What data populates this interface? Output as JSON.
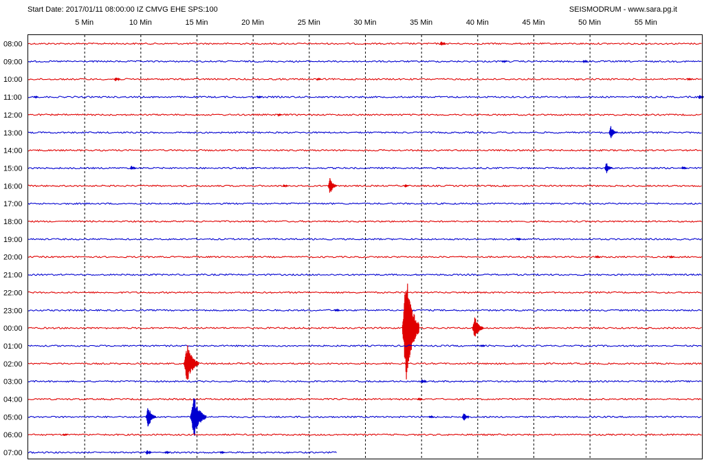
{
  "header": {
    "info": "Start Date: 2017/01/11 08:00:00 IZ CMVG EHE SPS:100",
    "credit": "SEISMODRUM - www.sara.pg.it"
  },
  "colors": {
    "red_trace": "#e00000",
    "blue_trace": "#0000d0",
    "grid": "#000000",
    "background": "#ffffff"
  },
  "chart_data": {
    "type": "line",
    "title": "",
    "xlabel": "",
    "ylabel": "",
    "x_unit": "minutes",
    "xlim": [
      0,
      60
    ],
    "x_ticks": [
      {
        "value": 5,
        "label": "5 Min"
      },
      {
        "value": 10,
        "label": "10 Min"
      },
      {
        "value": 15,
        "label": "15 Min"
      },
      {
        "value": 20,
        "label": "20 Min"
      },
      {
        "value": 25,
        "label": "25 Min"
      },
      {
        "value": 30,
        "label": "30 Min"
      },
      {
        "value": 35,
        "label": "35 Min"
      },
      {
        "value": 40,
        "label": "40 Min"
      },
      {
        "value": 45,
        "label": "45 Min"
      },
      {
        "value": 50,
        "label": "50 Min"
      },
      {
        "value": 55,
        "label": "55 Min"
      }
    ],
    "grid": true,
    "rows": [
      {
        "hour": "08:00",
        "color": "red",
        "end_minute": 60,
        "events": [
          {
            "minute": 36.8,
            "amp": 0.3
          }
        ]
      },
      {
        "hour": "09:00",
        "color": "blue",
        "end_minute": 60,
        "events": [
          {
            "minute": 49.5,
            "amp": 0.2
          },
          {
            "minute": 42.3,
            "amp": 0.15
          }
        ]
      },
      {
        "hour": "10:00",
        "color": "red",
        "end_minute": 60,
        "events": [
          {
            "minute": 7.8,
            "amp": 0.3
          },
          {
            "minute": 25.8,
            "amp": 0.1
          },
          {
            "minute": 58.8,
            "amp": 0.12
          }
        ]
      },
      {
        "hour": "11:00",
        "color": "blue",
        "end_minute": 60,
        "events": [
          {
            "minute": 0.6,
            "amp": 0.12
          },
          {
            "minute": 20.5,
            "amp": 0.12
          },
          {
            "minute": 59.8,
            "amp": 0.3
          }
        ]
      },
      {
        "hour": "12:00",
        "color": "red",
        "end_minute": 60,
        "events": [
          {
            "minute": 22.3,
            "amp": 0.1
          }
        ]
      },
      {
        "hour": "13:00",
        "color": "blue",
        "end_minute": 60,
        "events": [
          {
            "minute": 51.9,
            "amp": 0.9
          }
        ]
      },
      {
        "hour": "14:00",
        "color": "red",
        "end_minute": 60,
        "events": []
      },
      {
        "hour": "15:00",
        "color": "blue",
        "end_minute": 60,
        "events": [
          {
            "minute": 9.2,
            "amp": 0.3
          },
          {
            "minute": 51.5,
            "amp": 0.8
          },
          {
            "minute": 58.3,
            "amp": 0.2
          }
        ]
      },
      {
        "hour": "16:00",
        "color": "red",
        "end_minute": 60,
        "events": [
          {
            "minute": 22.8,
            "amp": 0.2
          },
          {
            "minute": 26.9,
            "amp": 1.1
          },
          {
            "minute": 33.6,
            "amp": 0.1
          }
        ]
      },
      {
        "hour": "17:00",
        "color": "blue",
        "end_minute": 60,
        "events": []
      },
      {
        "hour": "18:00",
        "color": "red",
        "end_minute": 60,
        "events": []
      },
      {
        "hour": "19:00",
        "color": "blue",
        "end_minute": 60,
        "events": [
          {
            "minute": 43.6,
            "amp": 0.15
          }
        ]
      },
      {
        "hour": "20:00",
        "color": "red",
        "end_minute": 60,
        "events": [
          {
            "minute": 50.6,
            "amp": 0.15
          },
          {
            "minute": 57.2,
            "amp": 0.12
          }
        ]
      },
      {
        "hour": "21:00",
        "color": "blue",
        "end_minute": 60,
        "events": []
      },
      {
        "hour": "22:00",
        "color": "red",
        "end_minute": 60,
        "events": []
      },
      {
        "hour": "23:00",
        "color": "blue",
        "end_minute": 60,
        "events": [
          {
            "minute": 27.4,
            "amp": 0.2
          },
          {
            "minute": 33.7,
            "amp": 0.3
          }
        ]
      },
      {
        "hour": "00:00",
        "color": "red",
        "end_minute": 60,
        "events": [
          {
            "minute": 33.7,
            "amp": 8.0
          },
          {
            "minute": 39.8,
            "amp": 1.6
          }
        ]
      },
      {
        "hour": "01:00",
        "color": "blue",
        "end_minute": 60,
        "events": [
          {
            "minute": 40.4,
            "amp": 0.12
          }
        ]
      },
      {
        "hour": "02:00",
        "color": "red",
        "end_minute": 60,
        "events": [
          {
            "minute": 14.2,
            "amp": 2.6
          }
        ]
      },
      {
        "hour": "03:00",
        "color": "blue",
        "end_minute": 60,
        "events": [
          {
            "minute": 35.1,
            "amp": 0.3
          }
        ]
      },
      {
        "hour": "04:00",
        "color": "red",
        "end_minute": 60,
        "events": [
          {
            "minute": 34.8,
            "amp": 0.15
          }
        ]
      },
      {
        "hour": "05:00",
        "color": "blue",
        "end_minute": 60,
        "events": [
          {
            "minute": 10.7,
            "amp": 1.4
          },
          {
            "minute": 14.8,
            "amp": 2.8
          },
          {
            "minute": 38.8,
            "amp": 0.6
          },
          {
            "minute": 35.8,
            "amp": 0.15
          }
        ]
      },
      {
        "hour": "06:00",
        "color": "red",
        "end_minute": 60,
        "events": [
          {
            "minute": 3.2,
            "amp": 0.15
          }
        ]
      },
      {
        "hour": "07:00",
        "color": "blue",
        "end_minute": 27.5,
        "events": [
          {
            "minute": 10.6,
            "amp": 0.3
          },
          {
            "minute": 12.3,
            "amp": 0.15
          },
          {
            "minute": 17.2,
            "amp": 0.12
          }
        ]
      }
    ]
  }
}
